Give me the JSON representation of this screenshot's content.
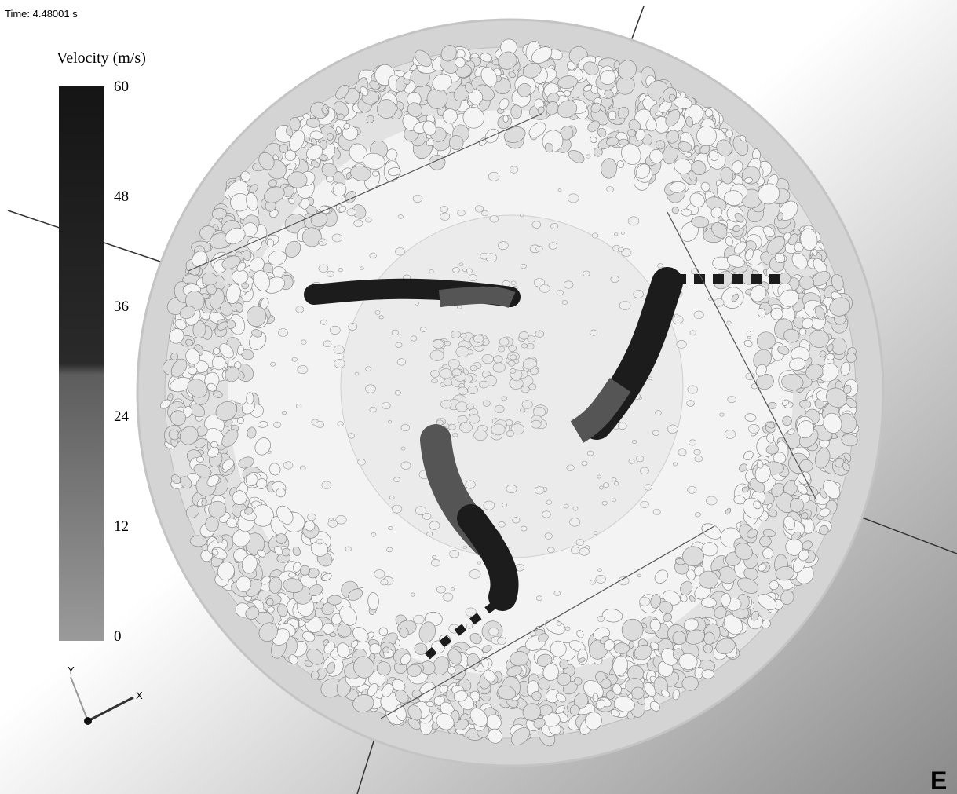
{
  "status": {
    "time": "Time: 4.48001 s"
  },
  "colorbar": {
    "title": "Velocity (m/s)",
    "lim": [
      0,
      60
    ],
    "ticks": [
      0,
      12,
      24,
      36,
      48,
      60
    ]
  },
  "triad": {
    "x": "X",
    "y": "Y"
  },
  "logo": "E"
}
